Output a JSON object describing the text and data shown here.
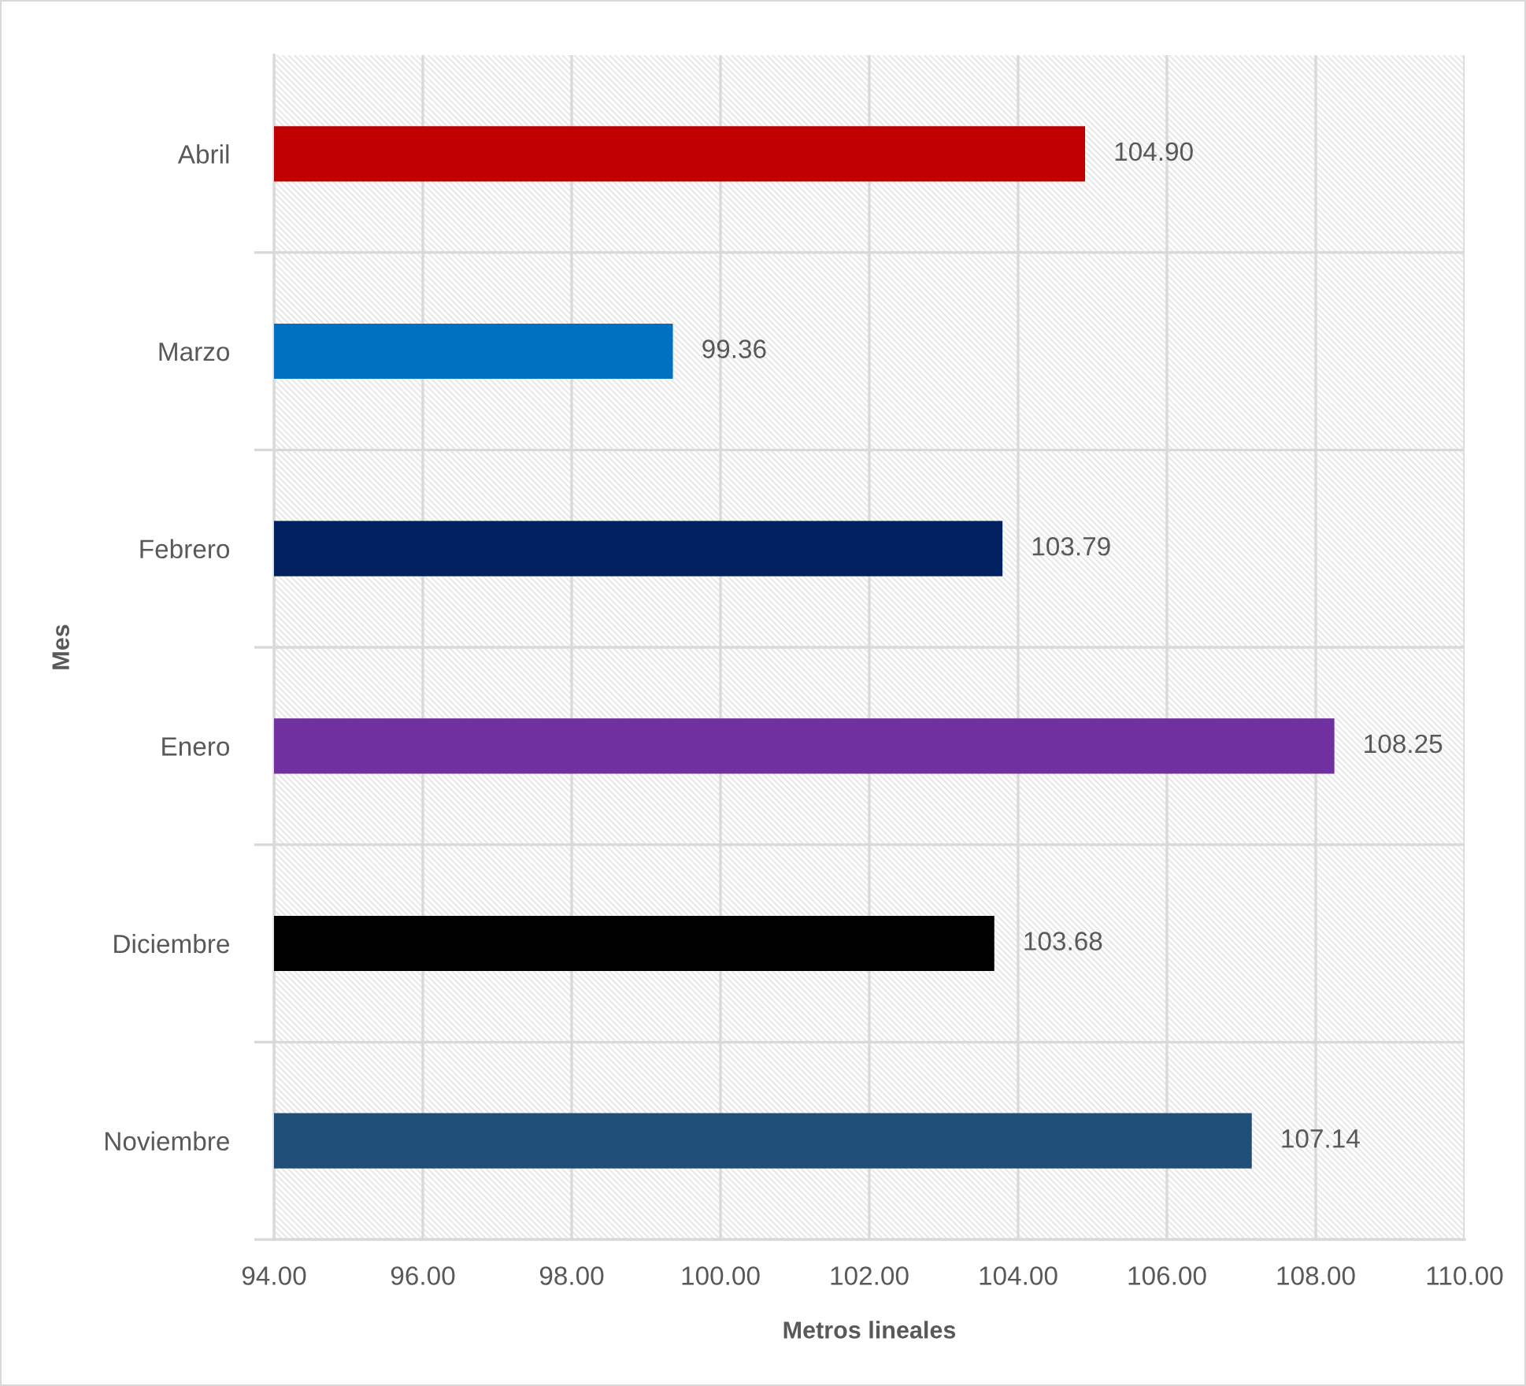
{
  "chart_data": {
    "type": "bar",
    "orientation": "horizontal",
    "categories": [
      "Abril",
      "Marzo",
      "Febrero",
      "Enero",
      "Diciembre",
      "Noviembre"
    ],
    "values": [
      104.9,
      99.36,
      103.79,
      108.25,
      103.68,
      107.14
    ],
    "colors": [
      "#c00000",
      "#0070c0",
      "#002060",
      "#7030a0",
      "#000000",
      "#1f4e79"
    ],
    "value_labels": [
      "104.90",
      "99.36",
      "103.79",
      "108.25",
      "103.68",
      "107.14"
    ],
    "xlabel": "Metros lineales",
    "ylabel": "Mes",
    "xlim": [
      94,
      110
    ],
    "xticks": [
      {
        "value": 94,
        "label": "94.00"
      },
      {
        "value": 96,
        "label": "96.00"
      },
      {
        "value": 98,
        "label": "98.00"
      },
      {
        "value": 100,
        "label": "100.00"
      },
      {
        "value": 102,
        "label": "102.00"
      },
      {
        "value": 104,
        "label": "104.00"
      },
      {
        "value": 106,
        "label": "106.00"
      },
      {
        "value": 108,
        "label": "108.00"
      },
      {
        "value": 110,
        "label": "110.00"
      }
    ],
    "grid": true
  }
}
